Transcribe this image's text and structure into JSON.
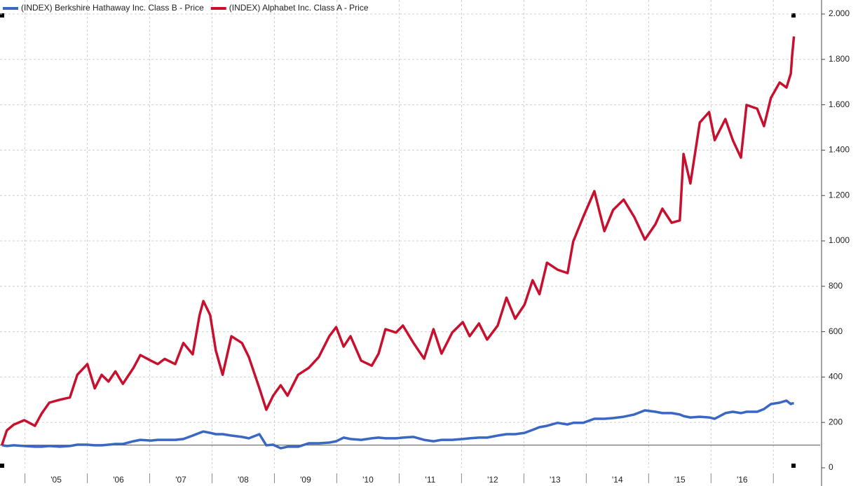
{
  "chart_data": {
    "type": "line",
    "x": [
      2004.63,
      2004.71,
      2004.82,
      2004.99,
      2005.16,
      2005.27,
      2005.39,
      2005.56,
      2005.72,
      2005.84,
      2006.0,
      2006.12,
      2006.23,
      2006.34,
      2006.45,
      2006.57,
      2006.74,
      2006.85,
      2007.02,
      2007.13,
      2007.24,
      2007.41,
      2007.54,
      2007.69,
      2007.8,
      2007.86,
      2007.97,
      2008.06,
      2008.17,
      2008.31,
      2008.48,
      2008.59,
      2008.76,
      2008.87,
      2008.98,
      2009.1,
      2009.21,
      2009.38,
      2009.55,
      2009.71,
      2009.88,
      2009.99,
      2010.11,
      2010.22,
      2010.39,
      2010.56,
      2010.67,
      2010.78,
      2010.95,
      2011.06,
      2011.23,
      2011.4,
      2011.55,
      2011.68,
      2011.85,
      2012.02,
      2012.13,
      2012.28,
      2012.41,
      2012.58,
      2012.72,
      2012.86,
      2013.01,
      2013.14,
      2013.25,
      2013.37,
      2013.54,
      2013.7,
      2013.79,
      2013.95,
      2014.13,
      2014.29,
      2014.43,
      2014.6,
      2014.77,
      2014.94,
      2015.11,
      2015.22,
      2015.37,
      2015.5,
      2015.56,
      2015.67,
      2015.82,
      2015.97,
      2016.06,
      2016.23,
      2016.35,
      2016.48,
      2016.57,
      2016.74,
      2016.85,
      2016.96,
      2017.1,
      2017.21,
      2017.28,
      2017.3,
      2017.33
    ],
    "series": [
      {
        "name": "(INDEX) Berkshire Hathaway Inc. Class B - Price",
        "color": "#3a66c4",
        "values": [
          100,
          96,
          99,
          96,
          93,
          93,
          96,
          93,
          96,
          102,
          102,
          99,
          99,
          102,
          105,
          105,
          117,
          123,
          120,
          123,
          123,
          123,
          127,
          142,
          154,
          160,
          154,
          148,
          148,
          142,
          136,
          130,
          148,
          99,
          102,
          86,
          93,
          93,
          108,
          108,
          111,
          117,
          133,
          127,
          123,
          130,
          133,
          130,
          130,
          133,
          136,
          123,
          117,
          123,
          123,
          127,
          130,
          133,
          133,
          142,
          148,
          148,
          154,
          167,
          179,
          185,
          198,
          191,
          198,
          198,
          216,
          216,
          219,
          225,
          235,
          253,
          247,
          241,
          241,
          235,
          228,
          222,
          225,
          222,
          216,
          241,
          247,
          241,
          247,
          247,
          259,
          281,
          287,
          296,
          281,
          284,
          284
        ]
      },
      {
        "name": "(INDEX) Alphabet Inc. Class A - Price",
        "color": "#c8102e",
        "values": [
          100,
          165,
          190,
          210,
          185,
          240,
          287,
          300,
          310,
          410,
          457,
          350,
          410,
          380,
          425,
          370,
          440,
          497,
          472,
          457,
          480,
          457,
          550,
          500,
          673,
          735,
          673,
          518,
          410,
          580,
          550,
          488,
          350,
          256,
          318,
          364,
          318,
          410,
          440,
          488,
          580,
          620,
          534,
          580,
          472,
          450,
          503,
          611,
          596,
          627,
          550,
          481,
          611,
          503,
          596,
          642,
          580,
          636,
          565,
          627,
          750,
          657,
          719,
          827,
          765,
          904,
          873,
          858,
          997,
          1105,
          1219,
          1043,
          1136,
          1182,
          1105,
          1006,
          1074,
          1142,
          1080,
          1090,
          1383,
          1253,
          1522,
          1568,
          1444,
          1537,
          1444,
          1367,
          1599,
          1583,
          1506,
          1630,
          1698,
          1676,
          1738,
          1815,
          1901
        ]
      }
    ],
    "xlim": [
      2004.6,
      2017.75
    ],
    "xticks": [
      {
        "value": 2005.5,
        "label": "'05"
      },
      {
        "value": 2006.5,
        "label": "'06"
      },
      {
        "value": 2007.5,
        "label": "'07"
      },
      {
        "value": 2008.5,
        "label": "'08"
      },
      {
        "value": 2009.5,
        "label": "'09"
      },
      {
        "value": 2010.5,
        "label": "'10"
      },
      {
        "value": 2011.5,
        "label": "'11"
      },
      {
        "value": 2012.5,
        "label": "'12"
      },
      {
        "value": 2013.5,
        "label": "'13"
      },
      {
        "value": 2014.5,
        "label": "'14"
      },
      {
        "value": 2015.5,
        "label": "'15"
      },
      {
        "value": 2016.5,
        "label": "'16"
      }
    ],
    "xgrid": [
      2005,
      2006,
      2007,
      2008,
      2009,
      2010,
      2011,
      2012,
      2013,
      2014,
      2015,
      2016,
      2017
    ],
    "ylim": [
      0,
      2000
    ],
    "yticks": [
      0,
      200,
      400,
      600,
      800,
      {
        "value": 1000,
        "label": "1.000"
      },
      {
        "value": 1200,
        "label": "1.200"
      },
      {
        "value": 1400,
        "label": "1.400"
      },
      {
        "value": 1600,
        "label": "1.600"
      },
      {
        "value": 1800,
        "label": "1.800"
      },
      {
        "value": 2000,
        "label": "2.000"
      }
    ],
    "reference_line": 100,
    "grid": true,
    "legend": "top-left"
  }
}
